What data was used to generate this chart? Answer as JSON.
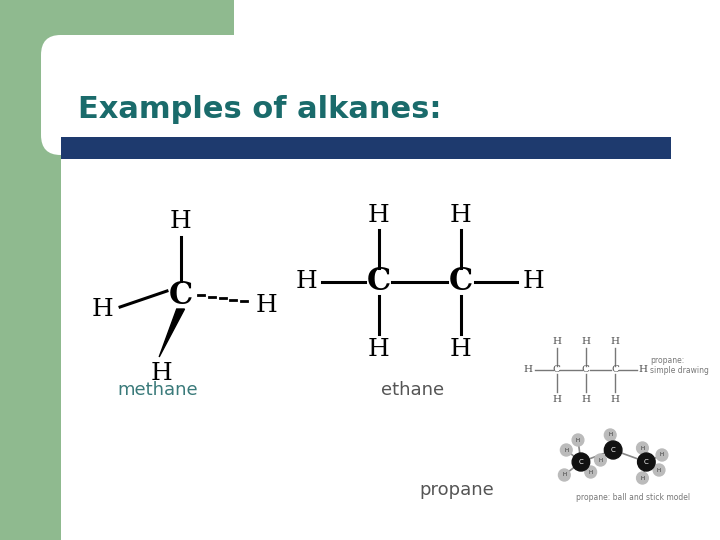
{
  "title": "Examples of alkanes:",
  "title_color": "#1a6b6b",
  "title_fontsize": 22,
  "title_bold": true,
  "bg_color": "#ffffff",
  "green_rect_color": "#8fba8f",
  "blue_bar_color": "#1e3a6e",
  "label_methane": "methane",
  "label_ethane": "ethane",
  "label_propane": "propane",
  "label_color": "#555555",
  "label_fontsize": 13,
  "methane_label_color": "#3a7a7a"
}
